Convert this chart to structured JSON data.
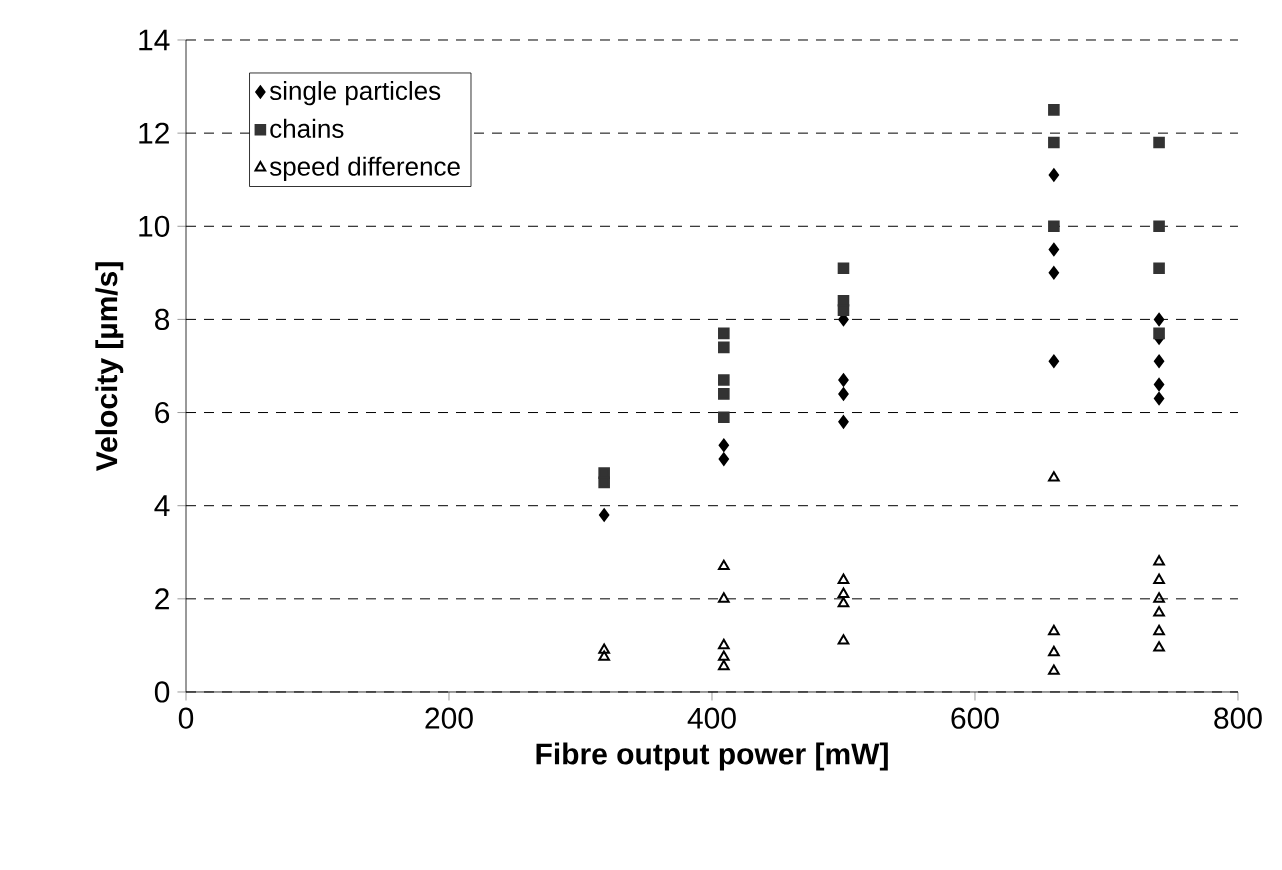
{
  "chart_data": {
    "type": "scatter",
    "xlabel": "Fibre output power [mW]",
    "ylabel": "Velocity [µm/s]",
    "xlim": [
      0,
      800
    ],
    "xticks": [
      0,
      200,
      400,
      600,
      800
    ],
    "ylim": [
      0,
      14
    ],
    "yticks": [
      0,
      2,
      4,
      6,
      8,
      10,
      12,
      14
    ],
    "grid": "y",
    "legend": "top left",
    "series": [
      {
        "name": "single particles",
        "color": "#000000",
        "marker": "diamond",
        "x": [
          318,
          409,
          409,
          500,
          500,
          500,
          500,
          660,
          660,
          660,
          660,
          740,
          740,
          740,
          740,
          740
        ],
        "values": [
          3.8,
          5.3,
          5.0,
          8.0,
          6.7,
          6.4,
          5.8,
          11.1,
          9.5,
          9.0,
          7.1,
          8.0,
          7.6,
          7.1,
          6.6,
          6.3
        ]
      },
      {
        "name": "chains",
        "color": "#333333",
        "marker": "square",
        "x": [
          318,
          318,
          409,
          409,
          409,
          409,
          409,
          500,
          500,
          500,
          660,
          660,
          660,
          740,
          740,
          740,
          740
        ],
        "values": [
          4.7,
          4.5,
          7.7,
          7.4,
          6.7,
          6.4,
          5.9,
          9.1,
          8.4,
          8.2,
          12.5,
          11.8,
          10.0,
          11.8,
          10.0,
          9.1,
          7.7
        ]
      },
      {
        "name": "speed difference",
        "color": "#000000",
        "marker": "triangle",
        "x": [
          318,
          318,
          409,
          409,
          409,
          409,
          409,
          500,
          500,
          500,
          500,
          660,
          660,
          660,
          660,
          740,
          740,
          740,
          740,
          740,
          740
        ],
        "values": [
          0.9,
          0.75,
          2.7,
          2.0,
          1.0,
          0.75,
          0.55,
          2.4,
          2.1,
          1.9,
          1.1,
          4.6,
          1.3,
          0.85,
          0.45,
          2.8,
          2.4,
          2.0,
          1.7,
          1.3,
          0.95
        ]
      }
    ]
  }
}
